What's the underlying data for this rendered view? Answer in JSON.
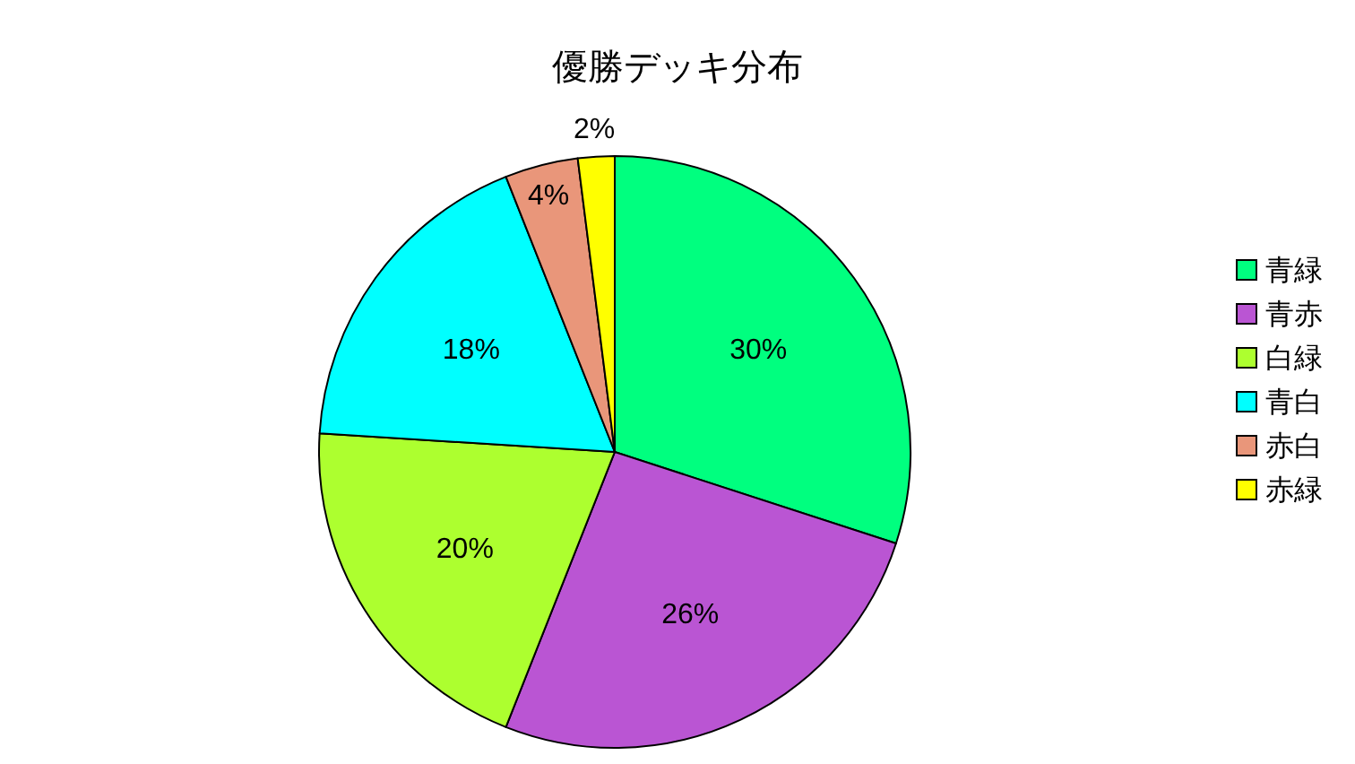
{
  "chart_data": {
    "type": "pie",
    "title": "優勝デッキ分布",
    "categories": [
      "青緑",
      "青赤",
      "白緑",
      "青白",
      "赤白",
      "赤緑"
    ],
    "values": [
      30,
      26,
      20,
      18,
      4,
      2
    ],
    "value_labels": [
      "30%",
      "26%",
      "20%",
      "18%",
      "4%",
      "2%"
    ],
    "colors": [
      "#00ff7f",
      "#ba55d3",
      "#adff2f",
      "#00ffff",
      "#e9967a",
      "#ffff00"
    ],
    "legend": "right"
  }
}
